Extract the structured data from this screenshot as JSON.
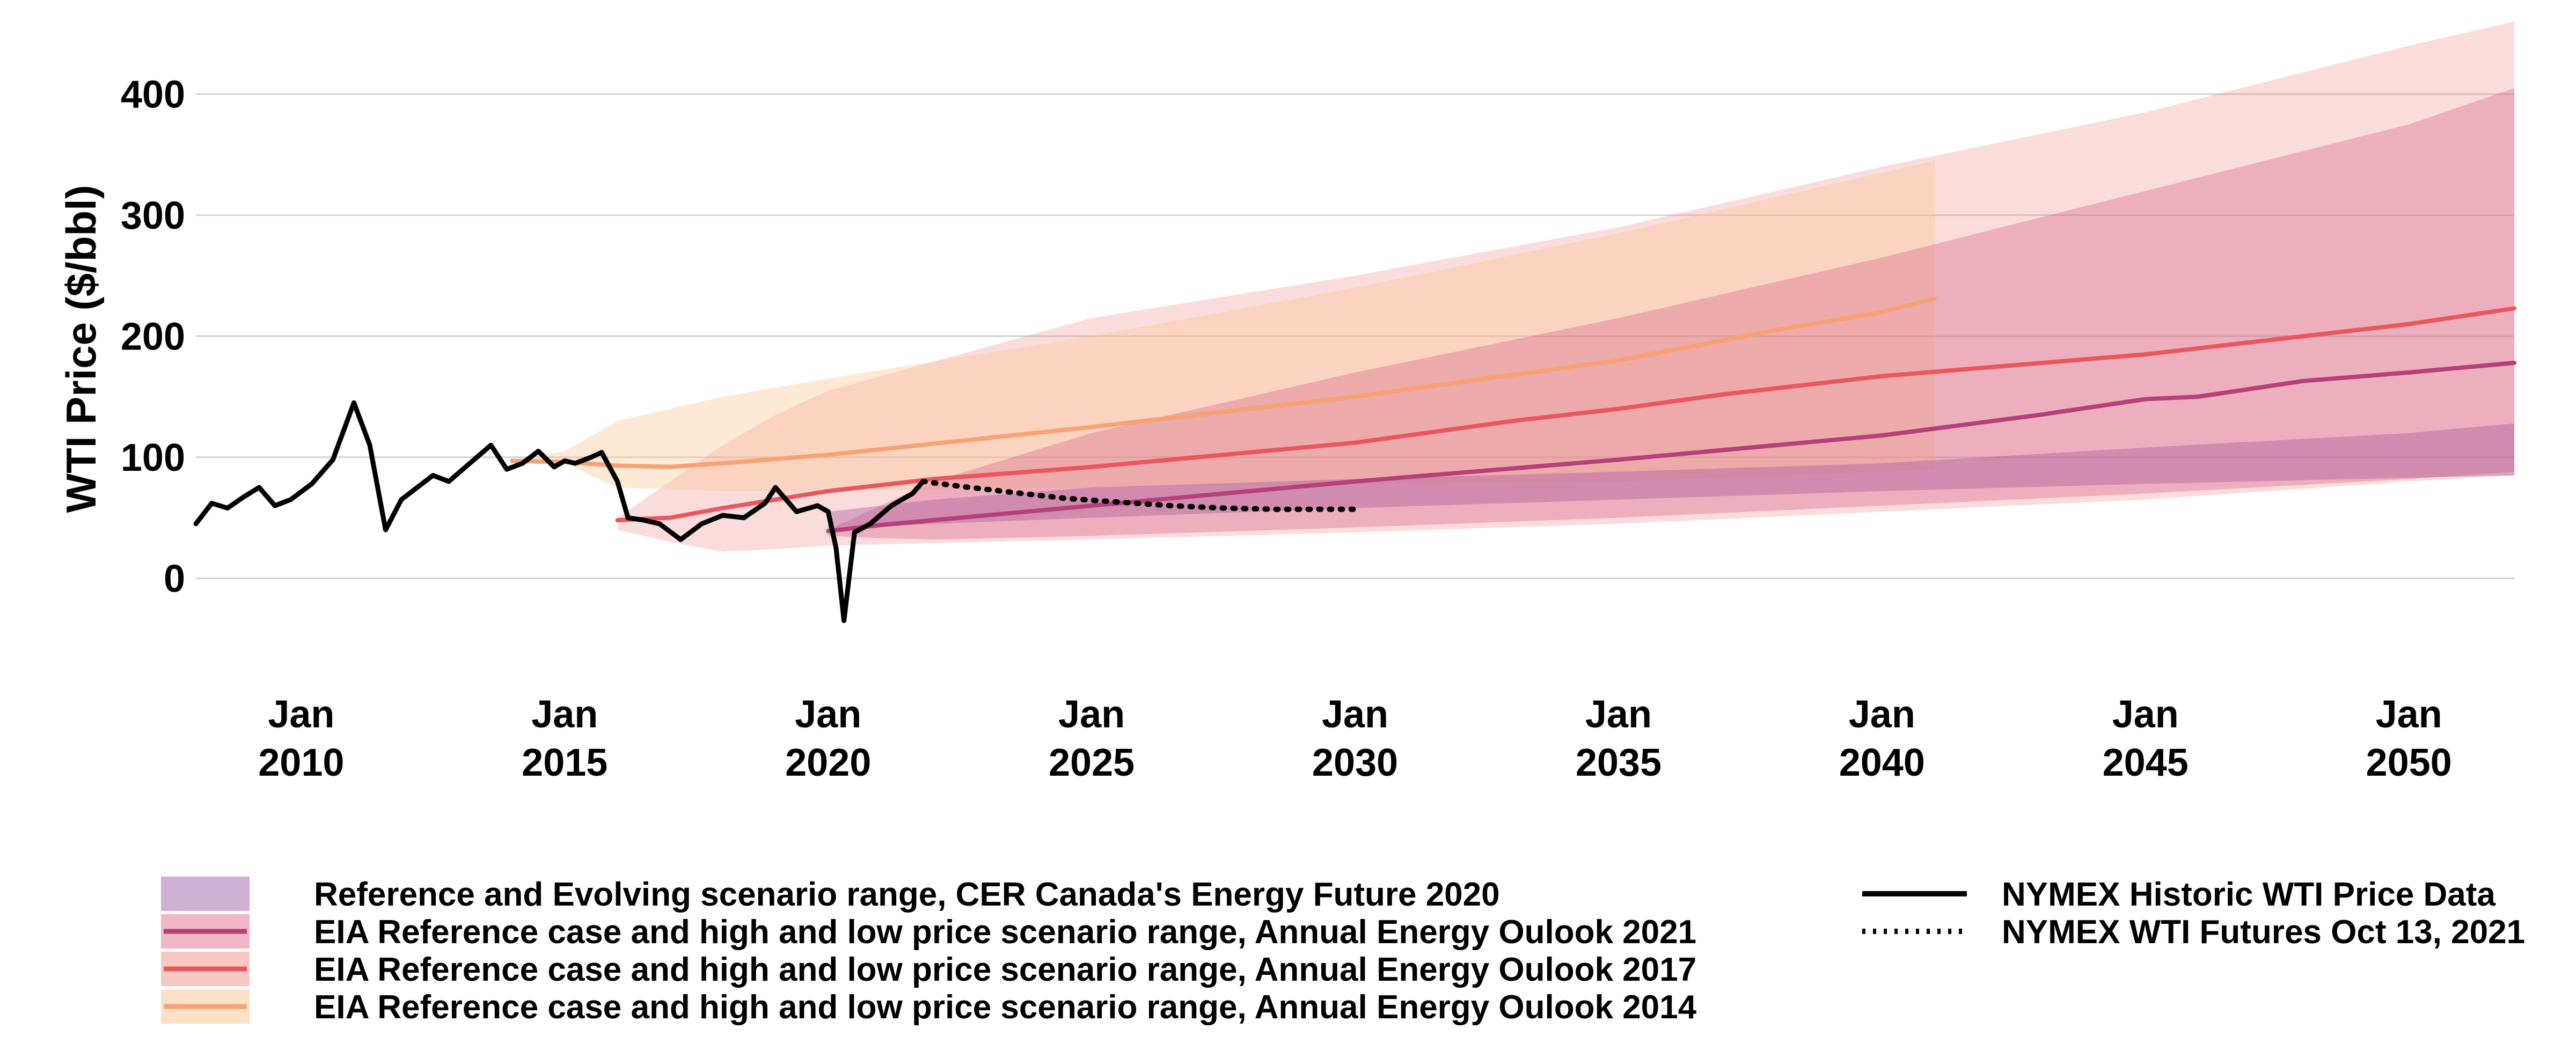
{
  "chart_data": {
    "type": "area",
    "title": "",
    "xlabel": "",
    "ylabel": "WTI Price ($/bbl)",
    "xlim": [
      2008.0,
      2052.0
    ],
    "ylim": [
      -50,
      460
    ],
    "y_ticks": [
      0,
      100,
      200,
      300,
      400
    ],
    "x_ticks": [
      {
        "value": 2010,
        "month": "Jan",
        "year": "2010"
      },
      {
        "value": 2015,
        "month": "Jan",
        "year": "2015"
      },
      {
        "value": 2020,
        "month": "Jan",
        "year": "2020"
      },
      {
        "value": 2025,
        "month": "Jan",
        "year": "2025"
      },
      {
        "value": 2030,
        "month": "Jan",
        "year": "2030"
      },
      {
        "value": 2035,
        "month": "Jan",
        "year": "2035"
      },
      {
        "value": 2040,
        "month": "Jan",
        "year": "2040"
      },
      {
        "value": 2045,
        "month": "Jan",
        "year": "2045"
      },
      {
        "value": 2050,
        "month": "Jan",
        "year": "2050"
      }
    ],
    "grid": "horizontal",
    "legend_position": "bottom",
    "bands": [
      {
        "name": "Reference and Evolving scenario range, CER Canada's Energy Future 2020",
        "color": "#a8559a",
        "opacity": 0.4,
        "x": [
          2020,
          2022,
          2025,
          2030,
          2035,
          2040,
          2045,
          2050,
          2052
        ],
        "low": [
          40,
          45,
          50,
          58,
          65,
          72,
          78,
          83,
          85
        ],
        "high": [
          55,
          65,
          75,
          82,
          88,
          95,
          108,
          120,
          128
        ]
      },
      {
        "name": "EIA Reference case and high and low price scenario range, Annual Energy Oulook 2021",
        "color": "#d45c85",
        "opacity": 0.35,
        "x": [
          2020,
          2021,
          2022,
          2025,
          2030,
          2035,
          2040,
          2045,
          2050,
          2052
        ],
        "low": [
          35,
          33,
          32,
          35,
          42,
          50,
          60,
          70,
          82,
          88
        ],
        "high": [
          40,
          60,
          80,
          120,
          170,
          215,
          265,
          320,
          375,
          405
        ]
      },
      {
        "name": "EIA Reference case and high and low price scenario range, Annual Energy Oulook 2017",
        "color": "#f08a8a",
        "opacity": 0.3,
        "x": [
          2016,
          2017,
          2018,
          2019,
          2020,
          2025,
          2030,
          2035,
          2040,
          2045,
          2050,
          2052
        ],
        "low": [
          40,
          30,
          22,
          24,
          27,
          32,
          38,
          45,
          55,
          65,
          80,
          85
        ],
        "high": [
          50,
          80,
          110,
          135,
          155,
          215,
          250,
          290,
          340,
          385,
          440,
          460
        ]
      },
      {
        "name": "EIA Reference case and high and low price scenario range, Annual Energy Oulook 2014",
        "color": "#fbc896",
        "opacity": 0.4,
        "x": [
          2014,
          2015,
          2016,
          2018,
          2020,
          2025,
          2030,
          2035,
          2040,
          2041
        ],
        "low": [
          98,
          95,
          75,
          72,
          72,
          75,
          78,
          80,
          88,
          90
        ],
        "high": [
          98,
          105,
          130,
          150,
          165,
          200,
          240,
          285,
          335,
          345
        ]
      }
    ],
    "lines": [
      {
        "name": "EIA Reference case and high and low price scenario range, Annual Energy Oulook 2021",
        "color": "#b5407a",
        "x": [
          2020,
          2021,
          2022,
          2023,
          2025,
          2030,
          2035,
          2040,
          2043,
          2045,
          2046,
          2048,
          2050,
          2052
        ],
        "y": [
          39,
          44,
          48,
          52,
          60,
          80,
          98,
          118,
          135,
          148,
          150,
          163,
          170,
          178
        ]
      },
      {
        "name": "EIA Reference case and high and low price scenario range, Annual Energy Oulook 2017",
        "color": "#e9575e",
        "x": [
          2016,
          2017,
          2018,
          2019,
          2020,
          2022,
          2025,
          2030,
          2033,
          2035,
          2037,
          2040,
          2045,
          2050,
          2052
        ],
        "y": [
          48,
          50,
          58,
          65,
          72,
          82,
          92,
          112,
          130,
          140,
          152,
          167,
          185,
          210,
          223
        ]
      },
      {
        "name": "EIA Reference case and high and low price scenario range, Annual Energy Oulook 2014",
        "color": "#f6a274",
        "x": [
          2014,
          2015,
          2016,
          2017,
          2018,
          2020,
          2025,
          2030,
          2035,
          2038,
          2040,
          2041
        ],
        "y": [
          97,
          96,
          93,
          92,
          95,
          102,
          125,
          150,
          180,
          205,
          220,
          231
        ]
      },
      {
        "name": "NYMEX Historic WTI Price Data",
        "color": "#000000",
        "style": "solid",
        "x": [
          2008.0,
          2008.3,
          2008.6,
          2008.9,
          2009.2,
          2009.5,
          2009.8,
          2010.2,
          2010.6,
          2011.0,
          2011.3,
          2011.6,
          2011.9,
          2012.2,
          2012.5,
          2012.8,
          2013.2,
          2013.6,
          2013.9,
          2014.2,
          2014.5,
          2014.8,
          2015.0,
          2015.2,
          2015.5,
          2015.7,
          2016.0,
          2016.2,
          2016.5,
          2016.8,
          2017.2,
          2017.6,
          2018.0,
          2018.4,
          2018.8,
          2019.0,
          2019.4,
          2019.8,
          2020.0,
          2020.15,
          2020.3,
          2020.5,
          2020.8,
          2021.2,
          2021.6,
          2021.8
        ],
        "y": [
          45,
          62,
          58,
          67,
          75,
          60,
          65,
          78,
          98,
          145,
          110,
          40,
          65,
          75,
          85,
          80,
          95,
          110,
          90,
          95,
          105,
          92,
          97,
          95,
          100,
          104,
          80,
          50,
          48,
          45,
          32,
          45,
          52,
          50,
          62,
          75,
          55,
          60,
          55,
          25,
          -35,
          38,
          45,
          60,
          70,
          80
        ]
      },
      {
        "name": "NYMEX WTI Futures Oct 13, 2021",
        "color": "#000000",
        "style": "dotted",
        "x": [
          2021.8,
          2022.5,
          2023.5,
          2024.5,
          2025.5,
          2026.5,
          2027.5,
          2028.5,
          2029.5,
          2030.0
        ],
        "y": [
          80,
          76,
          71,
          66,
          63,
          60,
          58,
          57,
          57,
          57
        ]
      }
    ],
    "legend": {
      "left": [
        {
          "label": "Reference and Evolving scenario range, CER Canada's Energy Future 2020",
          "swatch": "fill",
          "fill": "#cdb0d4",
          "stroke": ""
        },
        {
          "label": "EIA Reference case and high and low price scenario range, Annual Energy Oulook 2021",
          "swatch": "fill-line",
          "fill": "#f1b6c6",
          "stroke": "#b5407a"
        },
        {
          "label": "EIA Reference case and high and low price scenario range, Annual Energy Oulook 2017",
          "swatch": "fill-line",
          "fill": "#f8c7c2",
          "stroke": "#e9575e"
        },
        {
          "label": "EIA Reference case and high and low price scenario range, Annual Energy Oulook 2014",
          "swatch": "fill-line",
          "fill": "#fde1c7",
          "stroke": "#f6a274"
        }
      ],
      "right": [
        {
          "label": "NYMEX Historic WTI Price Data",
          "swatch": "line",
          "stroke": "#000000"
        },
        {
          "label": "NYMEX WTI Futures Oct 13, 2021",
          "swatch": "dotted",
          "stroke": "#000000"
        }
      ]
    }
  }
}
